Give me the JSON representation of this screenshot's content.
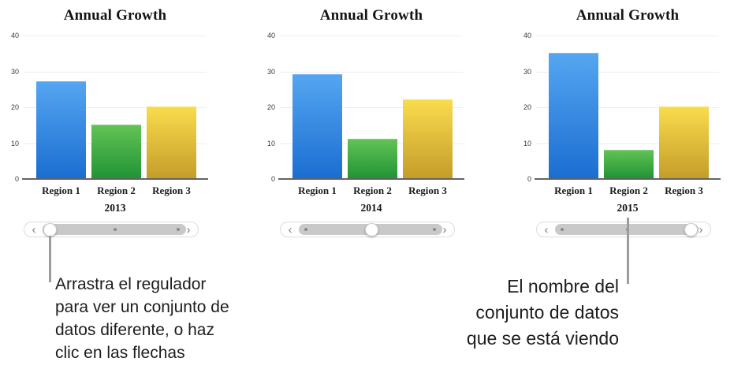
{
  "chart_data": [
    {
      "type": "bar",
      "title": "Annual Growth",
      "categories": [
        "Region 1",
        "Region 2",
        "Region 3"
      ],
      "values": [
        27,
        15,
        20
      ],
      "dataset_label": "2013",
      "xlabel": "",
      "ylabel": "",
      "ylim": [
        0,
        40
      ],
      "yticks": [
        0,
        10,
        20,
        30,
        40
      ],
      "grid": true,
      "legend": false,
      "slider": {
        "selected_index": 0,
        "num_positions": 3
      }
    },
    {
      "type": "bar",
      "title": "Annual Growth",
      "categories": [
        "Region 1",
        "Region 2",
        "Region 3"
      ],
      "values": [
        29,
        11,
        22
      ],
      "dataset_label": "2014",
      "xlabel": "",
      "ylabel": "",
      "ylim": [
        0,
        40
      ],
      "yticks": [
        0,
        10,
        20,
        30,
        40
      ],
      "grid": true,
      "legend": false,
      "slider": {
        "selected_index": 1,
        "num_positions": 3
      }
    },
    {
      "type": "bar",
      "title": "Annual Growth",
      "categories": [
        "Region 1",
        "Region 2",
        "Region 3"
      ],
      "values": [
        35,
        8,
        20
      ],
      "dataset_label": "2015",
      "xlabel": "",
      "ylabel": "",
      "ylim": [
        0,
        40
      ],
      "yticks": [
        0,
        10,
        20,
        30,
        40
      ],
      "grid": true,
      "legend": false,
      "slider": {
        "selected_index": 2,
        "num_positions": 3
      }
    }
  ],
  "series_colors": [
    {
      "category": "Region 1",
      "gradient_top": "#55a6f1",
      "gradient_bottom": "#1b6ed1"
    },
    {
      "category": "Region 2",
      "gradient_top": "#63c355",
      "gradient_bottom": "#219435"
    },
    {
      "category": "Region 3",
      "gradient_top": "#f9dc4d",
      "gradient_bottom": "#c59d2a"
    }
  ],
  "icons": {
    "chevron_left": "‹",
    "chevron_right": "›"
  },
  "callouts": {
    "slider_callout": {
      "lines": [
        "Arrastra el regulador",
        "para ver un conjunto de",
        "datos diferente, o haz",
        "clic en las flechas"
      ]
    },
    "dataset_callout": {
      "lines": [
        "El nombre del",
        "conjunto de datos",
        "que se está viendo"
      ]
    }
  },
  "colors": {
    "background": "#ffffff",
    "callout_text": "#1d1d1f",
    "callout_line": "#9c9c9c",
    "axis_text": "#3a3a3a",
    "chart_text": "#131313",
    "gridline": "#ededed",
    "baseline": "#636363",
    "slider_track": "#c9c9c9",
    "slider_dot": "#8a8a8a"
  }
}
